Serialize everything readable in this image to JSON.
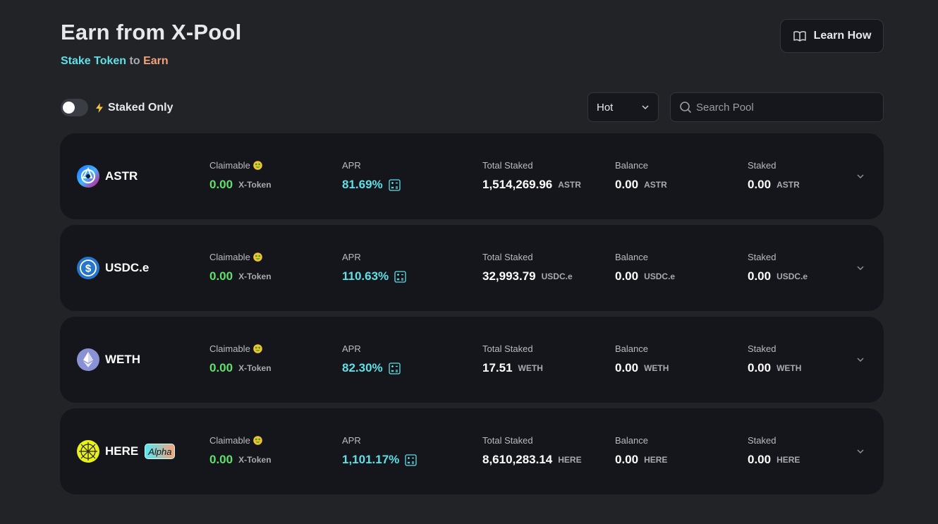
{
  "header": {
    "title": "Earn from X-Pool",
    "subtitle_part1": "Stake Token",
    "subtitle_part2": " to ",
    "subtitle_part3": "Earn",
    "learn_label": "Learn How"
  },
  "filters": {
    "staked_only_label": "Staked Only",
    "staked_only_on": false,
    "sort_value": "Hot",
    "search_placeholder": "Search Pool"
  },
  "labels": {
    "claimable": "Claimable",
    "apr": "APR",
    "total_staked": "Total Staked",
    "balance": "Balance",
    "staked": "Staked"
  },
  "colors": {
    "accent_cyan": "#5fe0e6",
    "accent_orange": "#f0a27a",
    "claimable_green": "#5ee06a",
    "card_bg": "#15161b",
    "page_bg": "#222327"
  },
  "pools": [
    {
      "token": "ASTR",
      "icon": "astar-logo-icon",
      "claimable": "0.00",
      "claimable_unit": "X-Token",
      "apr": "81.69%",
      "total_staked": "1,514,269.96",
      "total_unit": "ASTR",
      "balance": "0.00",
      "balance_unit": "ASTR",
      "staked": "0.00",
      "staked_unit": "ASTR"
    },
    {
      "token": "USDC.e",
      "icon": "usdc-logo-icon",
      "claimable": "0.00",
      "claimable_unit": "X-Token",
      "apr": "110.63%",
      "total_staked": "32,993.79",
      "total_unit": "USDC.e",
      "balance": "0.00",
      "balance_unit": "USDC.e",
      "staked": "0.00",
      "staked_unit": "USDC.e"
    },
    {
      "token": "WETH",
      "icon": "ethereum-logo-icon",
      "claimable": "0.00",
      "claimable_unit": "X-Token",
      "apr": "82.30%",
      "total_staked": "17.51",
      "total_unit": "WETH",
      "balance": "0.00",
      "balance_unit": "WETH",
      "staked": "0.00",
      "staked_unit": "WETH"
    },
    {
      "token": "HERE",
      "icon": "here-logo-icon",
      "badge": "Alpha",
      "claimable": "0.00",
      "claimable_unit": "X-Token",
      "apr": "1,101.17%",
      "total_staked": "8,610,283.14",
      "total_unit": "HERE",
      "balance": "0.00",
      "balance_unit": "HERE",
      "staked": "0.00",
      "staked_unit": "HERE"
    }
  ]
}
